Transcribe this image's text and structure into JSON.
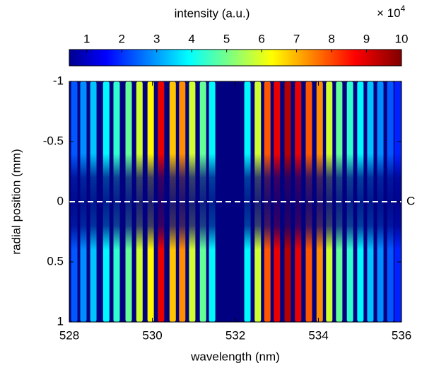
{
  "chart_data": {
    "type": "heatmap",
    "colorbar_label": "intensity (a.u.)",
    "colorbar_multiplier": "× 10",
    "colorbar_exponent": "4",
    "clim": [
      0.5,
      10
    ],
    "cticks": [
      1,
      2,
      3,
      4,
      5,
      6,
      7,
      8,
      9,
      10
    ],
    "xlabel": "wavelength (nm)",
    "ylabel": "radial position (mm)",
    "xlim": [
      528,
      536
    ],
    "xticks": [
      528,
      530,
      532,
      534,
      536
    ],
    "ylim": [
      -1,
      1
    ],
    "yticks": [
      -1,
      -0.5,
      0,
      0.5,
      1
    ],
    "hline": 0,
    "hline_label": "C",
    "x": [
      528.12,
      528.34,
      528.58,
      528.89,
      529.14,
      529.43,
      529.69,
      529.96,
      530.21,
      530.49,
      530.72,
      530.96,
      531.22,
      531.44,
      532.29,
      532.54,
      532.77,
      533.0,
      533.26,
      533.51,
      533.77,
      534.03,
      534.26,
      534.5,
      534.76,
      535.01,
      535.25,
      535.49,
      535.73,
      535.91
    ],
    "values": [
      2.5,
      3,
      3.5,
      4,
      4.5,
      5,
      6,
      6.5,
      9,
      7,
      7.5,
      6,
      5,
      4,
      4,
      6,
      8,
      9,
      9.5,
      9,
      8,
      7.5,
      6,
      5,
      4.5,
      4,
      3.5,
      3,
      2.5,
      2
    ]
  }
}
